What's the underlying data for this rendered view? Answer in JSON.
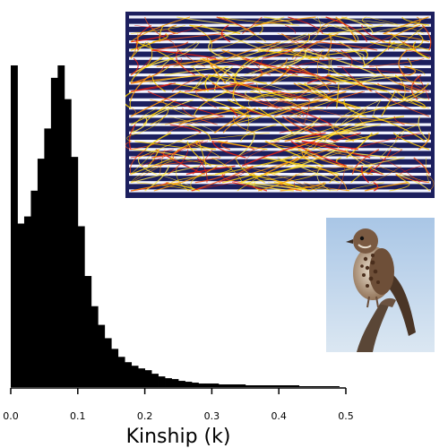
{
  "chart_data": {
    "type": "bar",
    "title": "",
    "xlabel": "Kinship (k)",
    "ylabel": "",
    "xlim": [
      0.0,
      0.5
    ],
    "ticks": [
      0.0,
      0.1,
      0.2,
      0.3,
      0.4,
      0.5
    ],
    "tick_labels": [
      "0.0",
      "0.1",
      "0.2",
      "0.3",
      "0.4",
      "0.5"
    ],
    "bin_width": 0.01,
    "bin_start": 0.0,
    "values": [
      362,
      184,
      192,
      221,
      257,
      291,
      348,
      362,
      324,
      259,
      181,
      125,
      91,
      70,
      55,
      43,
      34,
      28,
      24,
      21,
      19,
      15,
      12,
      10,
      9,
      7,
      6,
      5,
      4,
      4,
      4,
      3,
      3,
      3,
      3,
      2,
      2,
      2,
      2,
      2,
      2,
      2,
      2,
      1,
      1,
      1,
      1,
      1,
      1
    ],
    "ylim": [
      0,
      365
    ],
    "grid": false,
    "legend": "none"
  },
  "images": {
    "pedigree": "pedigree-diagram",
    "bird": "song-sparrow-photo"
  }
}
